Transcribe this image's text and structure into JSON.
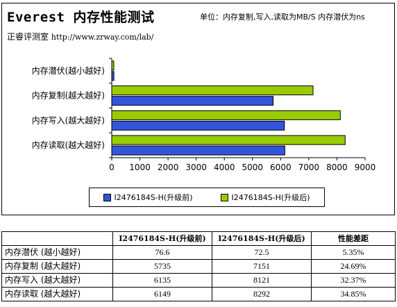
{
  "header": {
    "title": "Everest 内存性能测试",
    "unit_note": "单位：内存复制,写入,读取为MB/S 内存潜伏为ns",
    "source_label": "正睿评测室",
    "source_url": "http://www.zrway.com/lab/"
  },
  "chart_data": {
    "type": "bar",
    "orientation": "horizontal",
    "categories": [
      "内存潜伏(越小越好)",
      "内存复制(越大越好)",
      "内存写入(越大越好)",
      "内存读取(越大越好)"
    ],
    "series": [
      {
        "name": "I2476184S-H(升级前)",
        "color": "#3355dd",
        "values": [
          76.6,
          5735,
          6135,
          6149
        ]
      },
      {
        "name": "I2476184S-H(升级后)",
        "color": "#99cc00",
        "values": [
          72.5,
          7151,
          8121,
          8292
        ]
      }
    ],
    "xlim": [
      0,
      9000
    ],
    "xticks": [
      0,
      1000,
      2000,
      3000,
      4000,
      5000,
      6000,
      7000,
      8000,
      9000
    ],
    "legend_position": "bottom",
    "grid": false
  },
  "table": {
    "headers": [
      "",
      "I2476184S-H(升级前)",
      "I2476184S-H(升级后)",
      "性能差距"
    ],
    "rows": [
      [
        "内存潜伏 (越小越好)",
        "76.6",
        "72.5",
        "5.35%"
      ],
      [
        "内存复制 (越大越好)",
        "5735",
        "7151",
        "24.69%"
      ],
      [
        "内存写入 (越大越好)",
        "6135",
        "8121",
        "32.37%"
      ],
      [
        "内存读取 (越大越好)",
        "6149",
        "8292",
        "34.85%"
      ]
    ]
  }
}
